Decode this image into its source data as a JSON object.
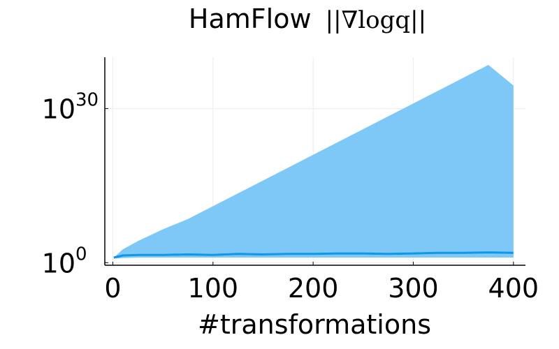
{
  "chart_data": {
    "type": "area",
    "title": "HamFlow ||∇logq||",
    "title_text": "HamFlow",
    "title_math": "||∇logq||",
    "xlabel": "#transformations",
    "ylabel": "",
    "xlim": [
      -8,
      412
    ],
    "xticks": [
      0,
      100,
      200,
      300,
      400
    ],
    "xtick_labels": [
      "0",
      "100",
      "200",
      "300",
      "400"
    ],
    "yscale": "log10",
    "ylim_log10": [
      -0.5,
      40
    ],
    "yticks_log10": [
      0,
      30
    ],
    "ytick_labels": [
      {
        "base": "10",
        "exp": "0"
      },
      {
        "base": "10",
        "exp": "30"
      }
    ],
    "grid": true,
    "legend": "none",
    "colors": {
      "band": "#7ec8f8",
      "line": "#0e96ea",
      "axis": "#000000",
      "grid": "#ebebeb"
    },
    "series": [
      {
        "x": [
          1,
          10,
          25,
          50,
          75,
          100,
          125,
          150,
          175,
          200,
          225,
          250,
          275,
          300,
          325,
          350,
          375,
          400
        ],
        "median_log10": [
          1.0,
          1.4,
          1.5,
          1.5,
          1.6,
          1.5,
          1.7,
          1.6,
          1.7,
          1.7,
          1.8,
          1.8,
          1.7,
          1.8,
          1.9,
          1.9,
          2.0,
          1.9
        ],
        "upper_log10": [
          1.0,
          2.6,
          4.2,
          6.5,
          8.5,
          11.0,
          13.5,
          16.0,
          18.5,
          21.0,
          23.5,
          26.0,
          28.5,
          31.0,
          33.5,
          36.0,
          38.5,
          34.5
        ],
        "lower_log10": [
          0.8,
          0.9,
          1.0,
          1.0,
          1.0,
          1.0,
          1.0,
          1.0,
          1.0,
          1.0,
          1.0,
          1.0,
          1.0,
          1.0,
          1.0,
          1.0,
          1.0,
          1.0
        ]
      }
    ]
  }
}
